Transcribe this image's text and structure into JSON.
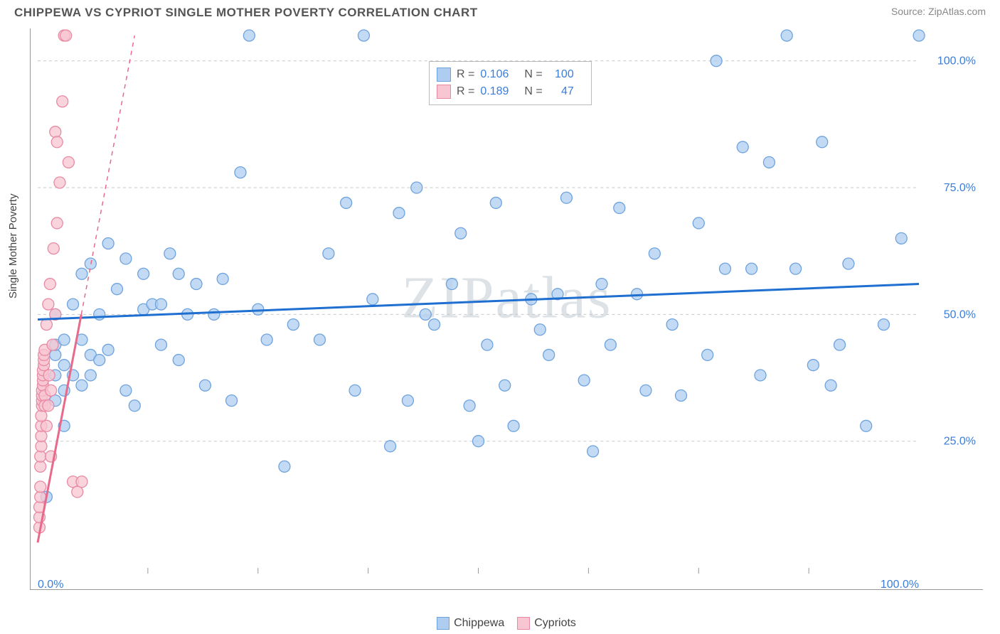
{
  "title": "CHIPPEWA VS CYPRIOT SINGLE MOTHER POVERTY CORRELATION CHART",
  "source_label": "Source: ZipAtlas.com",
  "watermark": "ZIPatlas",
  "y_axis_title": "Single Mother Poverty",
  "axis": {
    "xlim": [
      0,
      100
    ],
    "ylim": [
      0,
      105
    ],
    "x_ticks": [
      0,
      100
    ],
    "x_tick_labels": [
      "0.0%",
      "100.0%"
    ],
    "x_minor_ticks": [
      12.5,
      25,
      37.5,
      50,
      62.5,
      75,
      87.5
    ],
    "y_ticks": [
      25,
      50,
      75,
      100
    ],
    "y_tick_labels": [
      "25.0%",
      "50.0%",
      "75.0%",
      "100.0%"
    ],
    "tick_label_color": "#3b7dd8",
    "tick_label_fontsize": 16,
    "grid_color": "#c8c8c8",
    "border_color": "#999999",
    "background": "#ffffff"
  },
  "series": [
    {
      "name": "Chippewa",
      "color_fill": "#aecdf0",
      "color_stroke": "#6fa3de",
      "marker_radius": 8,
      "trend_color": "#1f6fd0",
      "trend_width": 3,
      "trend_dash": "",
      "trend": {
        "x1": 0,
        "y1": 49,
        "x2": 100,
        "y2": 56
      },
      "R": "0.106",
      "N": "100",
      "points": [
        [
          1,
          14
        ],
        [
          2,
          33
        ],
        [
          2,
          38
        ],
        [
          2,
          42
        ],
        [
          2,
          50
        ],
        [
          2,
          44
        ],
        [
          3,
          35
        ],
        [
          3,
          40
        ],
        [
          3,
          45
        ],
        [
          3,
          28
        ],
        [
          4,
          38
        ],
        [
          4,
          52
        ],
        [
          5,
          45
        ],
        [
          5,
          36
        ],
        [
          5,
          58
        ],
        [
          6,
          38
        ],
        [
          6,
          42
        ],
        [
          6,
          60
        ],
        [
          7,
          50
        ],
        [
          7,
          41
        ],
        [
          8,
          64
        ],
        [
          8,
          43
        ],
        [
          9,
          55
        ],
        [
          10,
          35
        ],
        [
          10,
          61
        ],
        [
          11,
          32
        ],
        [
          12,
          51
        ],
        [
          12,
          58
        ],
        [
          13,
          52
        ],
        [
          14,
          44
        ],
        [
          14,
          52
        ],
        [
          15,
          62
        ],
        [
          16,
          41
        ],
        [
          16,
          58
        ],
        [
          17,
          50
        ],
        [
          18,
          56
        ],
        [
          19,
          36
        ],
        [
          20,
          50
        ],
        [
          21,
          57
        ],
        [
          22,
          33
        ],
        [
          23,
          78
        ],
        [
          24,
          105
        ],
        [
          25,
          51
        ],
        [
          26,
          45
        ],
        [
          28,
          20
        ],
        [
          29,
          48
        ],
        [
          32,
          45
        ],
        [
          33,
          62
        ],
        [
          35,
          72
        ],
        [
          36,
          35
        ],
        [
          37,
          105
        ],
        [
          38,
          53
        ],
        [
          40,
          24
        ],
        [
          41,
          70
        ],
        [
          42,
          33
        ],
        [
          43,
          75
        ],
        [
          44,
          50
        ],
        [
          45,
          48
        ],
        [
          47,
          56
        ],
        [
          48,
          66
        ],
        [
          49,
          32
        ],
        [
          50,
          25
        ],
        [
          51,
          44
        ],
        [
          52,
          72
        ],
        [
          53,
          36
        ],
        [
          54,
          28
        ],
        [
          56,
          53
        ],
        [
          57,
          47
        ],
        [
          58,
          42
        ],
        [
          59,
          54
        ],
        [
          60,
          73
        ],
        [
          62,
          37
        ],
        [
          63,
          23
        ],
        [
          64,
          56
        ],
        [
          65,
          44
        ],
        [
          66,
          71
        ],
        [
          68,
          54
        ],
        [
          69,
          35
        ],
        [
          70,
          62
        ],
        [
          72,
          48
        ],
        [
          73,
          34
        ],
        [
          75,
          68
        ],
        [
          76,
          42
        ],
        [
          77,
          100
        ],
        [
          78,
          59
        ],
        [
          80,
          83
        ],
        [
          81,
          59
        ],
        [
          82,
          38
        ],
        [
          83,
          80
        ],
        [
          85,
          105
        ],
        [
          86,
          59
        ],
        [
          88,
          40
        ],
        [
          89,
          84
        ],
        [
          90,
          36
        ],
        [
          91,
          44
        ],
        [
          92,
          60
        ],
        [
          94,
          28
        ],
        [
          96,
          48
        ],
        [
          98,
          65
        ],
        [
          100,
          105
        ]
      ]
    },
    {
      "name": "Cypriots",
      "color_fill": "#f7c6d2",
      "color_stroke": "#e88aa3",
      "marker_radius": 8,
      "trend_color": "#e86a8a",
      "trend_width": 3,
      "trend_dash": "6 6",
      "trend": {
        "x1": 0,
        "y1": 5,
        "x2": 11,
        "y2": 105
      },
      "trend_solid_frac": 0.45,
      "R": "0.189",
      "N": "47",
      "points": [
        [
          0.2,
          8
        ],
        [
          0.2,
          10
        ],
        [
          0.2,
          12
        ],
        [
          0.3,
          14
        ],
        [
          0.3,
          16
        ],
        [
          0.3,
          20
        ],
        [
          0.3,
          22
        ],
        [
          0.4,
          24
        ],
        [
          0.4,
          26
        ],
        [
          0.4,
          28
        ],
        [
          0.4,
          30
        ],
        [
          0.5,
          32
        ],
        [
          0.5,
          33
        ],
        [
          0.5,
          34
        ],
        [
          0.5,
          35
        ],
        [
          0.6,
          36
        ],
        [
          0.6,
          37
        ],
        [
          0.6,
          38
        ],
        [
          0.6,
          39
        ],
        [
          0.7,
          40
        ],
        [
          0.7,
          41
        ],
        [
          0.7,
          42
        ],
        [
          0.8,
          43
        ],
        [
          0.8,
          34
        ],
        [
          0.8,
          32
        ],
        [
          1.0,
          48
        ],
        [
          1.0,
          28
        ],
        [
          1.2,
          52
        ],
        [
          1.2,
          32
        ],
        [
          1.3,
          38
        ],
        [
          1.4,
          56
        ],
        [
          1.5,
          22
        ],
        [
          1.5,
          35
        ],
        [
          1.7,
          44
        ],
        [
          1.8,
          63
        ],
        [
          2.0,
          50
        ],
        [
          2.0,
          86
        ],
        [
          2.2,
          68
        ],
        [
          2.2,
          84
        ],
        [
          2.5,
          76
        ],
        [
          2.8,
          92
        ],
        [
          3.0,
          105
        ],
        [
          3.2,
          105
        ],
        [
          3.5,
          80
        ],
        [
          4.0,
          17
        ],
        [
          4.5,
          15
        ],
        [
          5.0,
          17
        ]
      ]
    }
  ],
  "legend_top": {
    "rows": [
      {
        "swatch": 0,
        "R_label": "R =",
        "R_val": "0.106",
        "N_label": "N =",
        "N_val": "100"
      },
      {
        "swatch": 1,
        "R_label": "R =",
        "R_val": "0.189",
        "N_label": "N =",
        "N_val": "47"
      }
    ]
  },
  "legend_bottom": {
    "items": [
      {
        "swatch": 0,
        "label": "Chippewa"
      },
      {
        "swatch": 1,
        "label": "Cypriots"
      }
    ]
  }
}
